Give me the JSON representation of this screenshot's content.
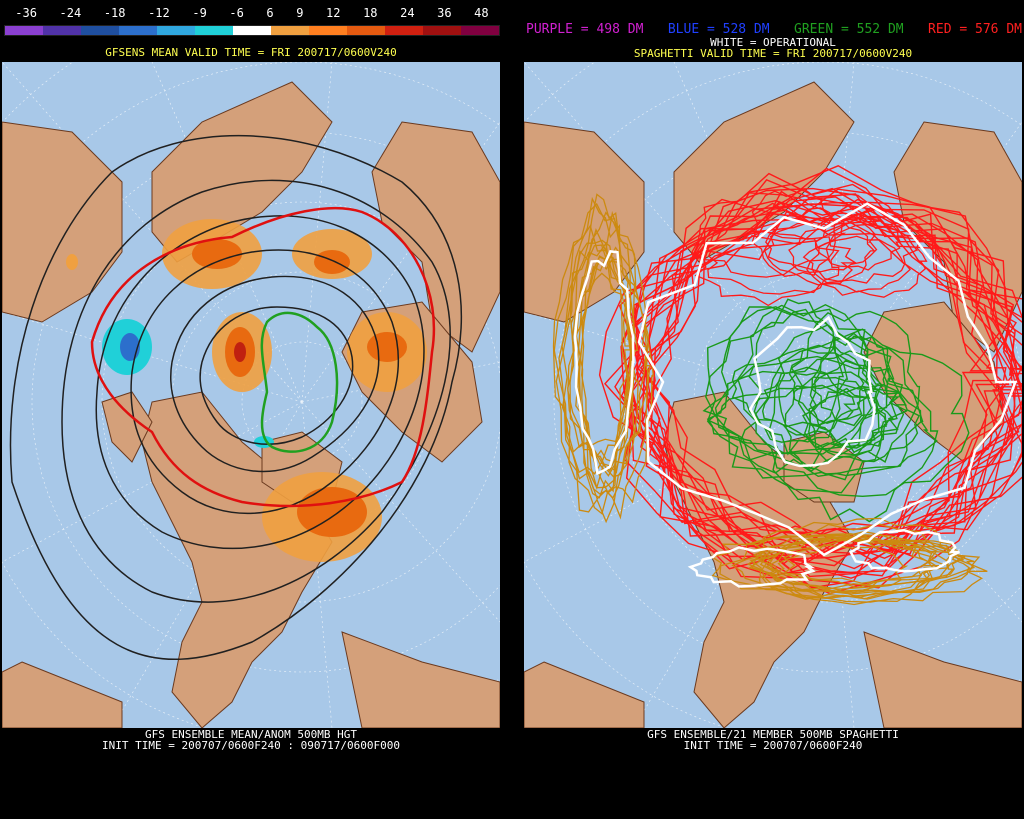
{
  "left_panel": {
    "scale_labels": [
      "-36",
      "-24",
      "-18",
      "-12",
      "-9",
      "-6",
      "6",
      "9",
      "12",
      "18",
      "24",
      "36",
      "48"
    ],
    "scale_colors": [
      "#8a3fd0",
      "#5032a8",
      "#1f4fa0",
      "#2c6fcc",
      "#30a8e0",
      "#20d0d8",
      "#ffffff",
      "#f0a040",
      "#ff7f20",
      "#e55a10",
      "#d02010",
      "#a01010",
      "#800040"
    ],
    "valid_time": "GFSENS MEAN VALID TIME = FRI 200717/0600V240",
    "footer_line1": "GFS ENSEMBLE MEAN/ANOM 500MB HGT",
    "footer_line2": "INIT TIME = 200707/0600F240 : 090717/0600F000"
  },
  "right_panel": {
    "legend": [
      {
        "label": "PURPLE = 498 DM",
        "color": "#d020d0"
      },
      {
        "label": "BLUE = 528 DM",
        "color": "#2040ff"
      },
      {
        "label": "GREEN = 552 DM",
        "color": "#20a020"
      },
      {
        "label": "RED = 576 DM",
        "color": "#ff2020"
      }
    ],
    "operational_label": "WHITE = OPERATIONAL",
    "valid_time": "SPAGHETTI VALID TIME = FRI 200717/0600V240",
    "footer_line1": "GFS ENSEMBLE/21 MEMBER 500MB SPAGHETTI",
    "footer_line2": "INIT TIME = 200707/0600F240"
  },
  "colors": {
    "ocean": "#a8c8e8",
    "land": "#d4a07a",
    "border": "#6b3a1f"
  }
}
